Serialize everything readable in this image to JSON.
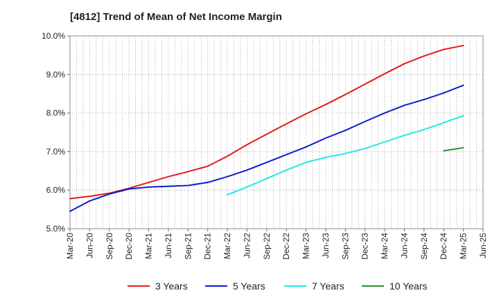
{
  "chart_data": {
    "type": "line",
    "title": "[4812]  Trend of Mean of Net Income Margin",
    "xlabel": "",
    "ylabel": "",
    "ylim": [
      5.0,
      10.0
    ],
    "y_ticks": [
      "5.0%",
      "6.0%",
      "7.0%",
      "8.0%",
      "9.0%",
      "10.0%"
    ],
    "x_range": [
      "2020-03",
      "2025-06"
    ],
    "x_ticks": [
      "Mar-20",
      "Jun-20",
      "Sep-20",
      "Dec-20",
      "Mar-21",
      "Jun-21",
      "Sep-21",
      "Dec-21",
      "Mar-22",
      "Jun-22",
      "Sep-22",
      "Dec-22",
      "Mar-23",
      "Jun-23",
      "Sep-23",
      "Dec-23",
      "Mar-24",
      "Jun-24",
      "Sep-24",
      "Dec-24",
      "Mar-25",
      "Jun-25"
    ],
    "grid": true,
    "legend_position": "bottom",
    "series": [
      {
        "name": "3 Years",
        "color": "#e31a1c",
        "points": [
          [
            "2020-03",
            5.78
          ],
          [
            "2020-06",
            5.84
          ],
          [
            "2020-09",
            5.92
          ],
          [
            "2020-12",
            6.05
          ],
          [
            "2021-03",
            6.2
          ],
          [
            "2021-06",
            6.35
          ],
          [
            "2021-09",
            6.48
          ],
          [
            "2021-12",
            6.62
          ],
          [
            "2022-03",
            6.88
          ],
          [
            "2022-06",
            7.18
          ],
          [
            "2022-09",
            7.45
          ],
          [
            "2022-12",
            7.72
          ],
          [
            "2023-03",
            7.98
          ],
          [
            "2023-06",
            8.22
          ],
          [
            "2023-09",
            8.48
          ],
          [
            "2023-12",
            8.75
          ],
          [
            "2024-03",
            9.02
          ],
          [
            "2024-06",
            9.28
          ],
          [
            "2024-09",
            9.48
          ],
          [
            "2024-12",
            9.65
          ],
          [
            "2025-03",
            9.75
          ]
        ]
      },
      {
        "name": "5 Years",
        "color": "#0a1ccf",
        "points": [
          [
            "2020-03",
            5.45
          ],
          [
            "2020-06",
            5.72
          ],
          [
            "2020-09",
            5.9
          ],
          [
            "2020-12",
            6.03
          ],
          [
            "2021-03",
            6.08
          ],
          [
            "2021-06",
            6.1
          ],
          [
            "2021-09",
            6.12
          ],
          [
            "2021-12",
            6.2
          ],
          [
            "2022-03",
            6.35
          ],
          [
            "2022-06",
            6.52
          ],
          [
            "2022-09",
            6.72
          ],
          [
            "2022-12",
            6.92
          ],
          [
            "2023-03",
            7.12
          ],
          [
            "2023-06",
            7.35
          ],
          [
            "2023-09",
            7.55
          ],
          [
            "2023-12",
            7.78
          ],
          [
            "2024-03",
            8.0
          ],
          [
            "2024-06",
            8.2
          ],
          [
            "2024-09",
            8.35
          ],
          [
            "2024-12",
            8.52
          ],
          [
            "2025-03",
            8.72
          ]
        ]
      },
      {
        "name": "7 Years",
        "color": "#22e6ea",
        "points": [
          [
            "2022-03",
            5.88
          ],
          [
            "2022-06",
            6.08
          ],
          [
            "2022-09",
            6.3
          ],
          [
            "2022-12",
            6.52
          ],
          [
            "2023-03",
            6.72
          ],
          [
            "2023-06",
            6.85
          ],
          [
            "2023-09",
            6.95
          ],
          [
            "2023-12",
            7.08
          ],
          [
            "2024-03",
            7.25
          ],
          [
            "2024-06",
            7.42
          ],
          [
            "2024-09",
            7.57
          ],
          [
            "2024-12",
            7.75
          ],
          [
            "2025-03",
            7.93
          ]
        ]
      },
      {
        "name": "10 Years",
        "color": "#2e8b2e",
        "points": [
          [
            "2024-12",
            7.02
          ],
          [
            "2025-03",
            7.1
          ]
        ]
      }
    ]
  }
}
